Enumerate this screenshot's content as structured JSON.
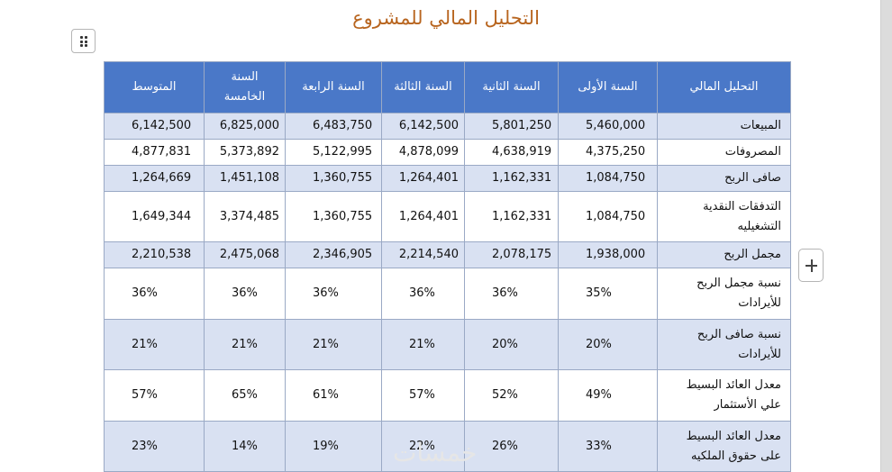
{
  "page": {
    "title": "التحليل المالي للمشروع",
    "watermark": "خمسات"
  },
  "table": {
    "headers": [
      "التحليل المالي",
      "السنة الأولى",
      "السنة الثانية",
      "السنة الثالثة",
      "السنة الرابعة",
      "السنة الخامسة",
      "المتوسط"
    ],
    "rows": [
      [
        "المبيعات",
        "5,460,000",
        "5,801,250",
        "6,142,500",
        "6,483,750",
        "6,825,000",
        "6,142,500"
      ],
      [
        "المصروفات",
        "4,375,250",
        "4,638,919",
        "4,878,099",
        "5,122,995",
        "5,373,892",
        "4,877,831"
      ],
      [
        "صافى الربح",
        "1,084,750",
        "1,162,331",
        "1,264,401",
        "1,360,755",
        "1,451,108",
        "1,264,669"
      ],
      [
        "التدفقات النقدية التشغيليه",
        "1,084,750",
        "1,162,331",
        "1,264,401",
        "1,360,755",
        "3,374,485",
        "1,649,344"
      ],
      [
        "مجمل الربح",
        "1,938,000",
        "2,078,175",
        "2,214,540",
        "2,346,905",
        "2,475,068",
        "2,210,538"
      ],
      [
        "نسبة مجمل الربح للأيرادات",
        "35%",
        "36%",
        "36%",
        "36%",
        "36%",
        "36%"
      ],
      [
        "نسبة صافى الربح للأيرادات",
        "20%",
        "20%",
        "21%",
        "21%",
        "21%",
        "21%"
      ],
      [
        "معدل العائد البسيط علي الأستثمار",
        "49%",
        "52%",
        "57%",
        "61%",
        "65%",
        "57%"
      ],
      [
        "معدل العائد البسيط على حقوق الملكيه",
        "33%",
        "26%",
        "22%",
        "19%",
        "14%",
        "23%"
      ]
    ]
  }
}
